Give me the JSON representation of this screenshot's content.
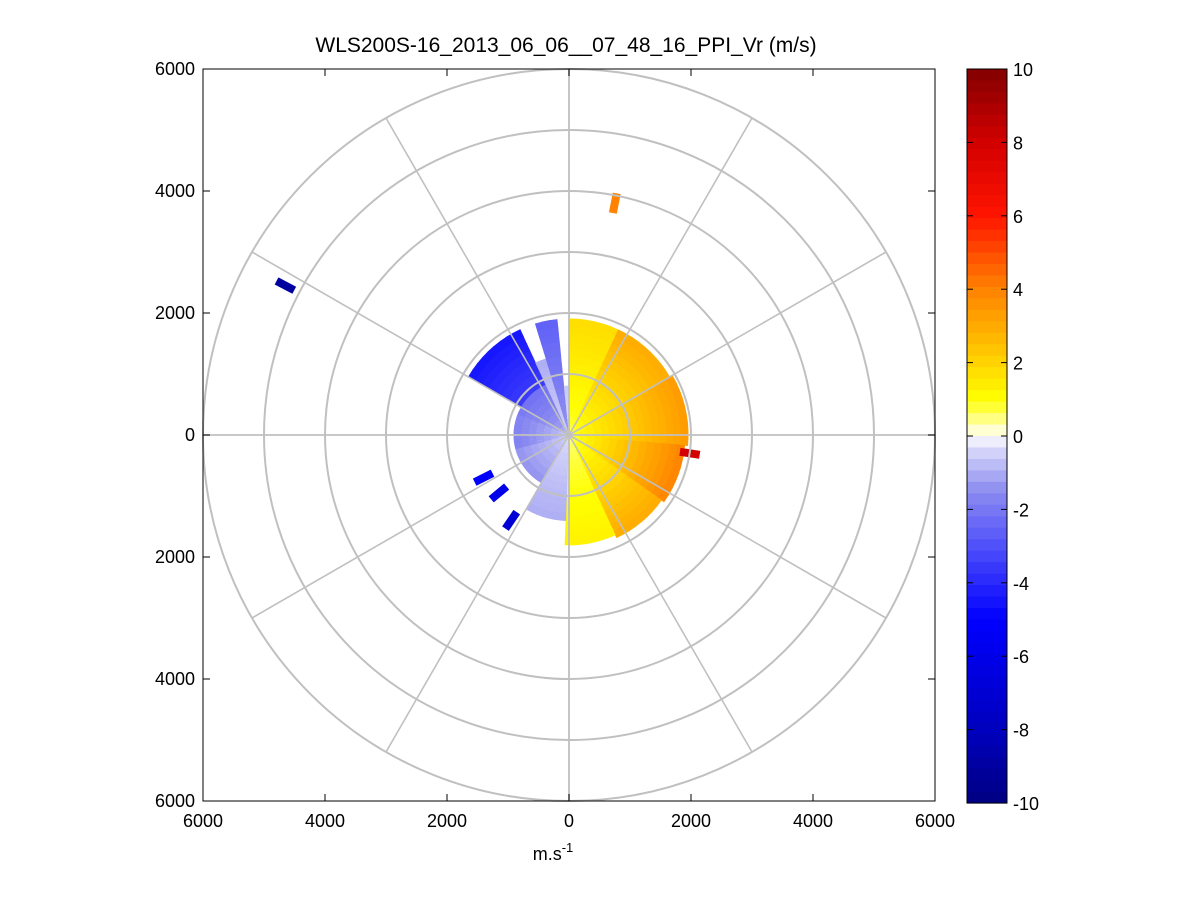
{
  "chart_data": {
    "type": "heatmap",
    "projection": "polar-ppi",
    "title": "WLS200S-16_2013_06_06__07_48_16_PPI_Vr (m/s)",
    "xlabel": "m.s",
    "xlabel_sup": "-1",
    "ylabel": "",
    "xlim": [
      -6000,
      6000
    ],
    "ylim": [
      -6000,
      6000
    ],
    "x_tick_values": [
      -6000,
      -4000,
      -2000,
      0,
      2000,
      4000,
      6000
    ],
    "x_tick_labels": [
      "6000",
      "4000",
      "2000",
      "0",
      "2000",
      "4000",
      "6000"
    ],
    "y_tick_values": [
      6000,
      4000,
      2000,
      0,
      -2000,
      -4000,
      -6000
    ],
    "y_tick_labels": [
      "6000",
      "4000",
      "2000",
      "0",
      "2000",
      "4000",
      "6000"
    ],
    "range_rings": [
      1000,
      2000,
      3000,
      4000,
      5000,
      6000
    ],
    "spokes_deg": [
      0,
      30,
      60,
      90,
      120,
      150,
      180,
      210,
      240,
      270,
      300,
      330
    ],
    "grid": true,
    "colorbar": {
      "min": -10,
      "max": 10,
      "ticks": [
        10,
        8,
        6,
        4,
        2,
        0,
        -2,
        -4,
        -6,
        -8,
        -10
      ],
      "tick_labels": [
        "10",
        "8",
        "6",
        "4",
        "2",
        "0",
        "-2",
        "-4",
        "-6",
        "-8",
        "-10"
      ],
      "placement": "right",
      "colormap": "blue-white-yellow-red"
    },
    "sectors": [
      {
        "az_start": 0,
        "az_end": 25,
        "r_start": 60,
        "r_end": 1900,
        "v_start": 0.8,
        "v_end": 1.8
      },
      {
        "az_start": 25,
        "az_end": 60,
        "r_start": 60,
        "r_end": 1900,
        "v_start": 0.9,
        "v_end": 3.0
      },
      {
        "az_start": 60,
        "az_end": 95,
        "r_start": 60,
        "r_end": 1950,
        "v_start": 1.0,
        "v_end": 3.4
      },
      {
        "az_start": 95,
        "az_end": 125,
        "r_start": 60,
        "r_end": 1900,
        "v_start": 0.9,
        "v_end": 4.0
      },
      {
        "az_start": 125,
        "az_end": 155,
        "r_start": 60,
        "r_end": 1850,
        "v_start": 0.8,
        "v_end": 3.0
      },
      {
        "az_start": 155,
        "az_end": 182,
        "r_start": 60,
        "r_end": 1800,
        "v_start": 0.6,
        "v_end": 1.3
      },
      {
        "az_start": 182,
        "az_end": 210,
        "r_start": 60,
        "r_end": 1400,
        "v_start": -0.4,
        "v_end": -1.0
      },
      {
        "az_start": 210,
        "az_end": 255,
        "r_start": 60,
        "r_end": 900,
        "v_start": -0.6,
        "v_end": -1.4
      },
      {
        "az_start": 255,
        "az_end": 292,
        "r_start": 60,
        "r_end": 900,
        "v_start": -0.8,
        "v_end": -1.8
      },
      {
        "az_start": 292,
        "az_end": 300,
        "r_start": 60,
        "r_end": 900,
        "v_start": -1.0,
        "v_end": -2.0
      },
      {
        "az_start": 300,
        "az_end": 335,
        "r_start": 900,
        "r_end": 1900,
        "v_start": -3.5,
        "v_end": -4.5
      },
      {
        "az_start": 300,
        "az_end": 335,
        "r_start": 60,
        "r_end": 900,
        "v_start": -1.2,
        "v_end": -2.2
      },
      {
        "az_start": 335,
        "az_end": 343,
        "r_start": 60,
        "r_end": 1300,
        "v_start": -0.5,
        "v_end": -1.0
      },
      {
        "az_start": 343,
        "az_end": 354,
        "r_start": 60,
        "r_end": 1900,
        "v_start": -1.4,
        "v_end": -2.6
      },
      {
        "az_start": 354,
        "az_end": 360,
        "r_start": 60,
        "r_end": 800,
        "v_start": -0.3,
        "v_end": -0.6
      }
    ],
    "isolated_echoes": [
      {
        "x": 750,
        "y": 3800,
        "v": 4.0
      },
      {
        "x": -4650,
        "y": 2450,
        "v": -9.0
      },
      {
        "x": 1980,
        "y": -300,
        "v": 8.0
      },
      {
        "x": -1400,
        "y": -700,
        "v": -5.0
      },
      {
        "x": -1150,
        "y": -950,
        "v": -6.0
      },
      {
        "x": -950,
        "y": -1400,
        "v": -7.0
      }
    ]
  }
}
